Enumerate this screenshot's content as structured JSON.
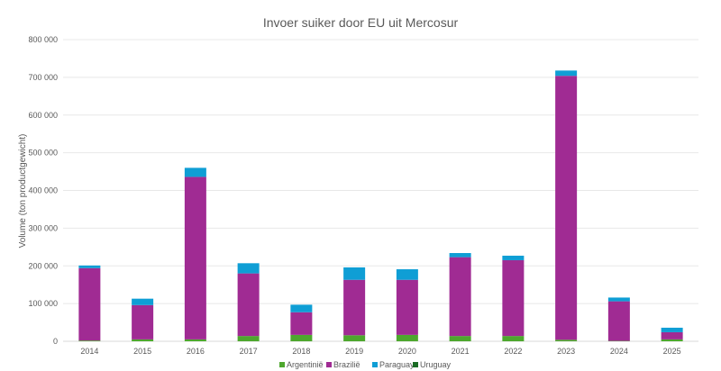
{
  "chart_data": {
    "type": "bar",
    "stacked": true,
    "title": "Invoer suiker door EU uit Mercosur",
    "xlabel": "",
    "ylabel": "Volume (ton productgewicht)",
    "ylim": [
      0,
      800000
    ],
    "yticks": [
      "0",
      "100 000",
      "200 000",
      "300 000",
      "400 000",
      "500 000",
      "600 000",
      "700 000",
      "800 000"
    ],
    "ytick_values": [
      0,
      100000,
      200000,
      300000,
      400000,
      500000,
      600000,
      700000,
      800000
    ],
    "grid": true,
    "legend_position": "bottom",
    "categories": [
      "2014",
      "2015",
      "2016",
      "2017",
      "2018",
      "2019",
      "2020",
      "2021",
      "2022",
      "2023",
      "2024",
      "2025"
    ],
    "series": [
      {
        "name": "Argentinië",
        "color": "#4ea72e",
        "values": [
          2000,
          5000,
          5000,
          14000,
          17000,
          16000,
          17000,
          14000,
          14000,
          4000,
          1000,
          5000
        ]
      },
      {
        "name": "Brazilië",
        "color": "#a02b93",
        "values": [
          192000,
          91000,
          431000,
          166000,
          60000,
          147000,
          146000,
          209000,
          201000,
          700000,
          105000,
          19000
        ]
      },
      {
        "name": "Paraguay",
        "color": "#0f9ed5",
        "values": [
          7000,
          17000,
          24000,
          27000,
          20000,
          33000,
          28000,
          11000,
          12000,
          14000,
          10000,
          12000
        ]
      },
      {
        "name": "Uruguay",
        "color": "#196b24",
        "values": [
          0,
          0,
          0,
          0,
          0,
          0,
          0,
          0,
          0,
          0,
          0,
          0
        ]
      }
    ]
  }
}
